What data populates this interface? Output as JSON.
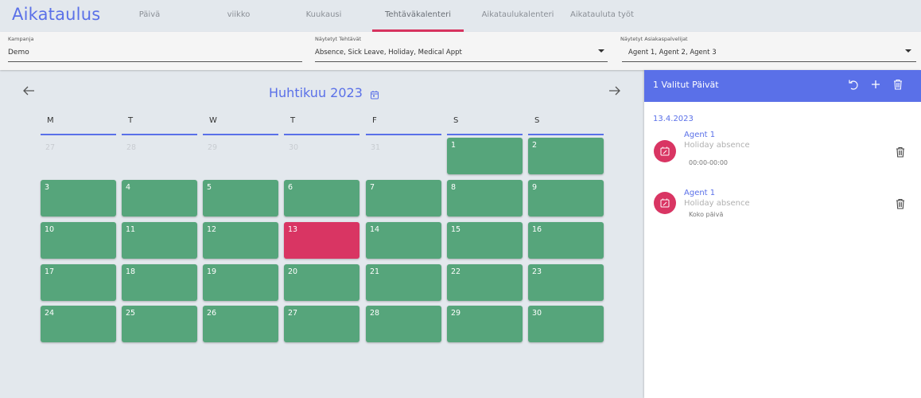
{
  "app": {
    "title": "Aikataulus"
  },
  "tabs": [
    {
      "label": "Päivä",
      "active": false
    },
    {
      "label": "viikko",
      "active": false
    },
    {
      "label": "Kuukausi",
      "active": false
    },
    {
      "label": "Tehtäväkalenteri",
      "active": true
    },
    {
      "label": "Aikataulukalenteri",
      "active": false
    },
    {
      "label": "Aikatauluta työt",
      "active": false
    }
  ],
  "filters": {
    "campaign": {
      "label": "Kampanja",
      "value": "Demo"
    },
    "tasks": {
      "label": "Näytetyt Tehtävät",
      "value": "Absence, Sick Leave, Holiday, Medical Appt"
    },
    "agents": {
      "label": "Näytetyt Asiakaspalvelijat",
      "value": "Agent 1, Agent 2, Agent 3"
    }
  },
  "calendar": {
    "month_title": "Huhtikuu 2023",
    "prev_icon": "arrow-left-icon",
    "next_icon": "arrow-right-icon",
    "weekdays": [
      "M",
      "T",
      "W",
      "T",
      "F",
      "S",
      "S"
    ],
    "weeks": [
      [
        {
          "d": "27",
          "s": "out"
        },
        {
          "d": "28",
          "s": "out"
        },
        {
          "d": "29",
          "s": "out"
        },
        {
          "d": "30",
          "s": "out"
        },
        {
          "d": "31",
          "s": "out"
        },
        {
          "d": "1",
          "s": "in"
        },
        {
          "d": "2",
          "s": "in"
        }
      ],
      [
        {
          "d": "3",
          "s": "in"
        },
        {
          "d": "4",
          "s": "in"
        },
        {
          "d": "5",
          "s": "in"
        },
        {
          "d": "6",
          "s": "in"
        },
        {
          "d": "7",
          "s": "in"
        },
        {
          "d": "8",
          "s": "in"
        },
        {
          "d": "9",
          "s": "in"
        }
      ],
      [
        {
          "d": "10",
          "s": "in"
        },
        {
          "d": "11",
          "s": "in"
        },
        {
          "d": "12",
          "s": "in"
        },
        {
          "d": "13",
          "s": "sel"
        },
        {
          "d": "14",
          "s": "in"
        },
        {
          "d": "15",
          "s": "in"
        },
        {
          "d": "16",
          "s": "in"
        }
      ],
      [
        {
          "d": "17",
          "s": "in"
        },
        {
          "d": "18",
          "s": "in"
        },
        {
          "d": "19",
          "s": "in"
        },
        {
          "d": "20",
          "s": "in"
        },
        {
          "d": "21",
          "s": "in"
        },
        {
          "d": "22",
          "s": "in"
        },
        {
          "d": "23",
          "s": "in"
        }
      ],
      [
        {
          "d": "24",
          "s": "in"
        },
        {
          "d": "25",
          "s": "in"
        },
        {
          "d": "26",
          "s": "in"
        },
        {
          "d": "27",
          "s": "in"
        },
        {
          "d": "28",
          "s": "in"
        },
        {
          "d": "29",
          "s": "in"
        },
        {
          "d": "30",
          "s": "in"
        }
      ]
    ]
  },
  "panel": {
    "title": "1 Valitut Päivät",
    "icons": [
      "undo-icon",
      "plus-icon",
      "trash-icon"
    ],
    "date": "13.4.2023",
    "entries": [
      {
        "agent": "Agent 1",
        "type": "Holiday absence",
        "time": "00:00-00:00"
      },
      {
        "agent": "Agent 1",
        "type": "Holiday absence",
        "time": "Koko päivä"
      }
    ]
  },
  "colors": {
    "accent": "#5a70e8",
    "active_tab": "#d8335f",
    "day_available": "#56a57b",
    "day_selected": "#d93563",
    "background": "#e3e8ed"
  }
}
